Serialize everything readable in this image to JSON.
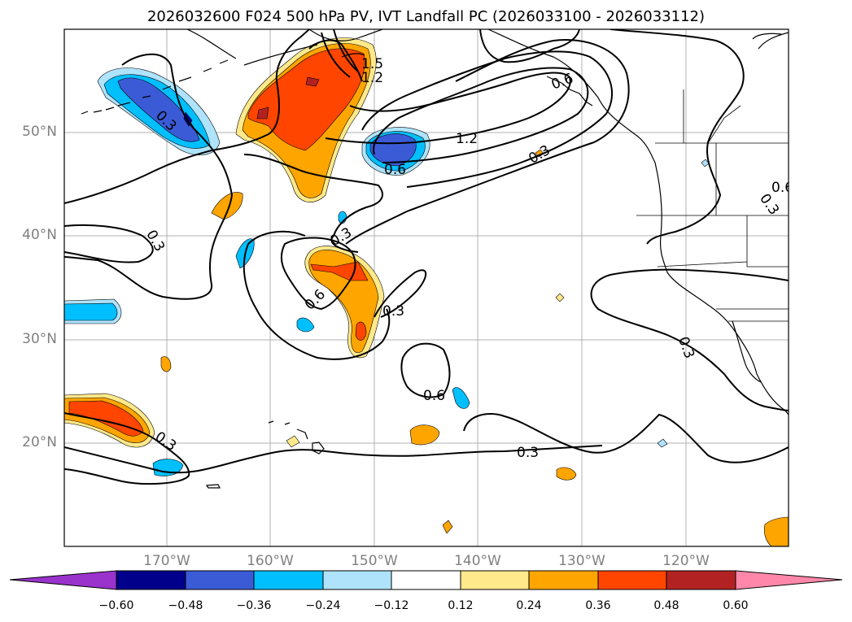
{
  "title": "2026032600 F024 500 hPa PV, IVT Landfall PC (2026033100 - 2026033112)",
  "lat_labels": [
    "50°N",
    "40°N",
    "30°N",
    "20°N"
  ],
  "lon_labels": [
    "170°W",
    "160°W",
    "150°W",
    "140°W",
    "130°W",
    "120°W"
  ],
  "colorbar": {
    "ticks": [
      "−0.60",
      "−0.48",
      "−0.36",
      "−0.24",
      "−0.12",
      "0.12",
      "0.24",
      "0.36",
      "0.48",
      "0.60"
    ],
    "colors": [
      "#9933cc",
      "#00008b",
      "#3b5bd6",
      "#00bfff",
      "#aee3fb",
      "#ffffff",
      "#ffe98a",
      "#ffa500",
      "#ff4500",
      "#b22222",
      "#ff88aa"
    ]
  },
  "contour_labels": [
    "1.5",
    "1.2",
    "0.6",
    "0.3",
    "1.2",
    "0.3",
    "0.6",
    "0.3",
    "0.6",
    "0.3",
    "0.3",
    "0.3",
    "0.3",
    "0.6",
    "0.3",
    "0.3",
    "0.6"
  ]
}
